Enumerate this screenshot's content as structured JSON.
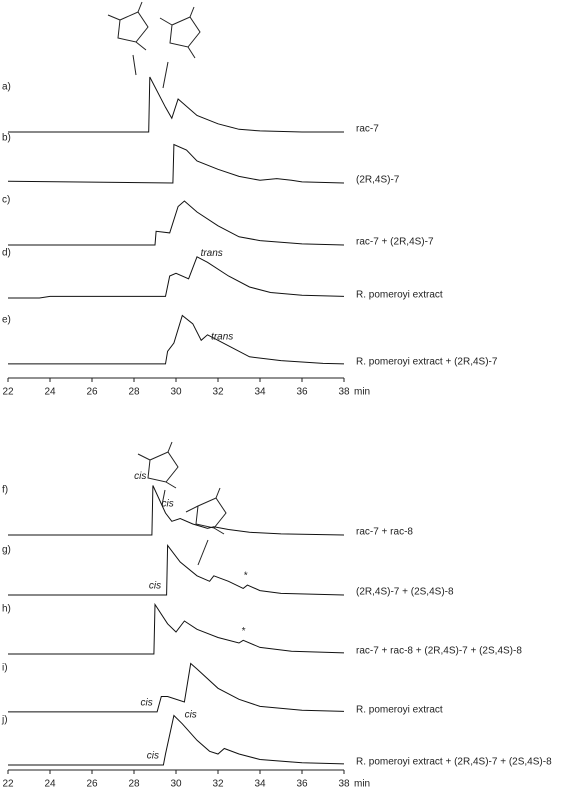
{
  "chart_data": [
    {
      "type": "line",
      "xlim": [
        22,
        38
      ],
      "xticks": [
        22,
        24,
        26,
        28,
        30,
        32,
        34,
        36,
        38
      ],
      "xlabel": "min",
      "series": [
        {
          "name": "a)",
          "label": "rac-7",
          "color": "#111",
          "x": [
            22,
            28.7,
            28.75,
            29.5,
            29.8,
            30.1,
            31,
            32,
            33,
            34,
            36,
            38
          ],
          "values": [
            0,
            0,
            100,
            45,
            25,
            60,
            30,
            15,
            5,
            2,
            0,
            0
          ]
        },
        {
          "name": "b)",
          "label": "(2R,4S)-7",
          "color": "#111",
          "x": [
            22,
            29.85,
            29.9,
            30.5,
            31,
            32,
            33,
            34,
            34.8,
            35.5,
            36,
            38
          ],
          "values": [
            3,
            0,
            70,
            60,
            40,
            25,
            12,
            5,
            8,
            5,
            2,
            0
          ]
        },
        {
          "name": "c)",
          "label": "rac-7 + (2R,4S)-7",
          "color": "#111",
          "x": [
            22,
            29,
            29.05,
            29.7,
            30.1,
            30.4,
            31,
            32,
            33,
            34,
            35,
            36,
            38
          ],
          "values": [
            0,
            0,
            25,
            22,
            70,
            80,
            60,
            35,
            15,
            8,
            5,
            2,
            0
          ]
        },
        {
          "name": "d)",
          "label": "R. pomeroyi extract",
          "color": "#111",
          "x": [
            22,
            23.5,
            24,
            29.5,
            29.7,
            30,
            30.6,
            31,
            31.5,
            32.5,
            33.5,
            34.5,
            36,
            38
          ],
          "values": [
            0,
            0,
            3,
            3,
            40,
            45,
            35,
            75,
            65,
            40,
            20,
            10,
            5,
            3
          ],
          "annotations": [
            {
              "text": "trans",
              "x": 31.7
            }
          ]
        },
        {
          "name": "e)",
          "label": "R. pomeroyi extract + (2R,4S)-7",
          "color": "#111",
          "x": [
            22,
            29.5,
            29.6,
            29.9,
            30.3,
            30.8,
            31.2,
            31.5,
            32.5,
            33.5,
            35,
            37,
            38
          ],
          "values": [
            2,
            2,
            25,
            40,
            90,
            75,
            45,
            55,
            35,
            15,
            8,
            3,
            2
          ],
          "annotations": [
            {
              "text": "trans",
              "x": 32.2
            }
          ]
        }
      ]
    },
    {
      "type": "line",
      "xlim": [
        22,
        38
      ],
      "xticks": [
        22,
        24,
        26,
        28,
        30,
        32,
        34,
        36,
        38
      ],
      "xlabel": "min",
      "series": [
        {
          "name": "f)",
          "label": "rac-7 + rac-8",
          "color": "#111",
          "x": [
            22,
            28.85,
            28.9,
            29.5,
            29.8,
            30.2,
            30.8,
            31.5,
            31.8,
            32.5,
            33.5,
            35,
            38
          ],
          "values": [
            0,
            0,
            90,
            40,
            25,
            30,
            20,
            12,
            15,
            10,
            5,
            2,
            0
          ],
          "annotations": [
            {
              "text": "cis",
              "x": 28.3
            },
            {
              "text": "cis",
              "x": 29.6
            }
          ]
        },
        {
          "name": "g)",
          "label": "(2R,4S)-7 + (2S,4S)-8",
          "color": "#111",
          "x": [
            22,
            29.55,
            29.6,
            30.2,
            31,
            31.6,
            31.8,
            32.5,
            33.2,
            33.4,
            34,
            35,
            38
          ],
          "values": [
            0,
            0,
            90,
            60,
            35,
            25,
            35,
            25,
            12,
            18,
            8,
            3,
            0
          ],
          "annotations": [
            {
              "text": "cis",
              "x": 29.0
            },
            {
              "text": "*",
              "x": 33.3
            }
          ]
        },
        {
          "name": "h)",
          "label": "rac-7 + rac-8 + (2R,4S)-7 + (2S,4S)-8",
          "color": "#111",
          "x": [
            22,
            28.95,
            29,
            29.6,
            30,
            30.4,
            31,
            32,
            33,
            33.2,
            34,
            35.5,
            38
          ],
          "values": [
            0,
            0,
            90,
            55,
            40,
            60,
            45,
            30,
            20,
            25,
            12,
            5,
            2
          ],
          "annotations": [
            {
              "text": "*",
              "x": 33.2
            }
          ]
        },
        {
          "name": "i)",
          "label": "R. pomeroyi extract",
          "color": "#111",
          "x": [
            22,
            29.1,
            29.3,
            29.6,
            30.4,
            30.7,
            31,
            32,
            33,
            34,
            36,
            38
          ],
          "values": [
            2,
            2,
            30,
            30,
            20,
            90,
            80,
            45,
            25,
            12,
            5,
            3
          ],
          "annotations": [
            {
              "text": "cis",
              "x": 28.6
            }
          ]
        },
        {
          "name": "j)",
          "label": "R. pomeroyi extract + (2R,4S)-7 + (2S,4S)-8",
          "color": "#111",
          "x": [
            22,
            29.4,
            29.5,
            29.9,
            30.3,
            31,
            31.6,
            32,
            32.3,
            33,
            34,
            36,
            38
          ],
          "values": [
            0,
            0,
            20,
            90,
            75,
            45,
            25,
            20,
            30,
            20,
            10,
            4,
            2
          ],
          "annotations": [
            {
              "text": "cis",
              "x": 28.9
            },
            {
              "text": "cis",
              "x": 30.7
            }
          ]
        }
      ]
    }
  ]
}
